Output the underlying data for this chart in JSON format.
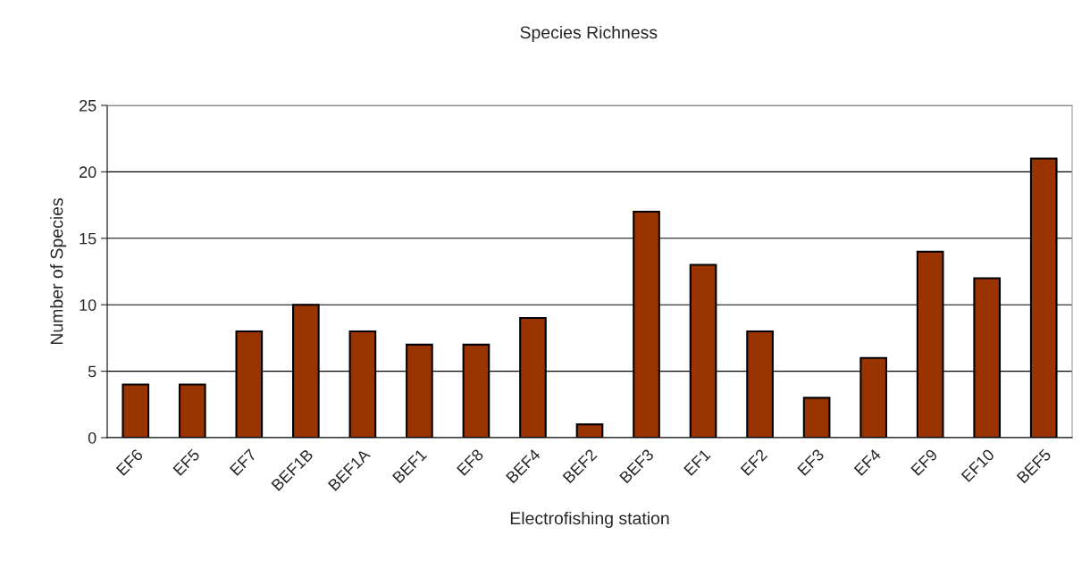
{
  "chart_data": {
    "type": "bar",
    "title": "Species Richness",
    "xlabel": "Electrofishing station",
    "ylabel": "Number of Species",
    "categories": [
      "EF6",
      "EF5",
      "EF7",
      "BEF1B",
      "BEF1A",
      "BEF1",
      "EF8",
      "BEF4",
      "BEF2",
      "BEF3",
      "EF1",
      "EF2",
      "EF3",
      "EF4",
      "EF9",
      "EF10",
      "BEF5"
    ],
    "values": [
      4,
      4,
      8,
      10,
      8,
      7,
      7,
      9,
      1,
      17,
      13,
      8,
      3,
      6,
      14,
      12,
      21
    ],
    "color": "#993300",
    "ylim": [
      0,
      25
    ],
    "yticks": [
      0,
      5,
      10,
      15,
      20,
      25
    ],
    "grid": "y",
    "legend": false
  }
}
